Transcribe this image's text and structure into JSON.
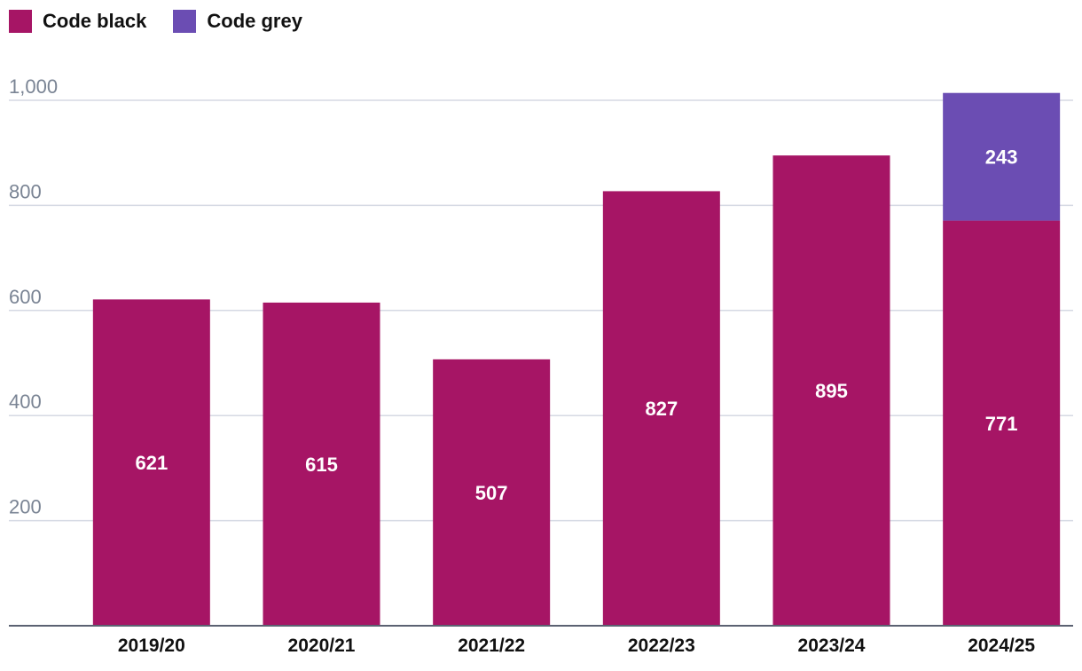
{
  "chart_data": {
    "type": "bar",
    "stacked": true,
    "categories": [
      "2019/20",
      "2020/21",
      "2021/22",
      "2022/23",
      "2023/24",
      "2024/25"
    ],
    "series": [
      {
        "name": "Code black",
        "values": [
          621,
          615,
          507,
          827,
          895,
          771
        ],
        "color": "#a61565"
      },
      {
        "name": "Code grey",
        "values": [
          0,
          0,
          0,
          0,
          0,
          243
        ],
        "color": "#6b4db3"
      }
    ],
    "yticks": [
      200,
      400,
      600,
      800,
      1000
    ],
    "ytick_labels": [
      "200",
      "400",
      "600",
      "800",
      "1,000"
    ],
    "ylim": [
      0,
      1000
    ],
    "grid": true,
    "legend_position": "top-left",
    "title": "",
    "xlabel": "",
    "ylabel": ""
  }
}
